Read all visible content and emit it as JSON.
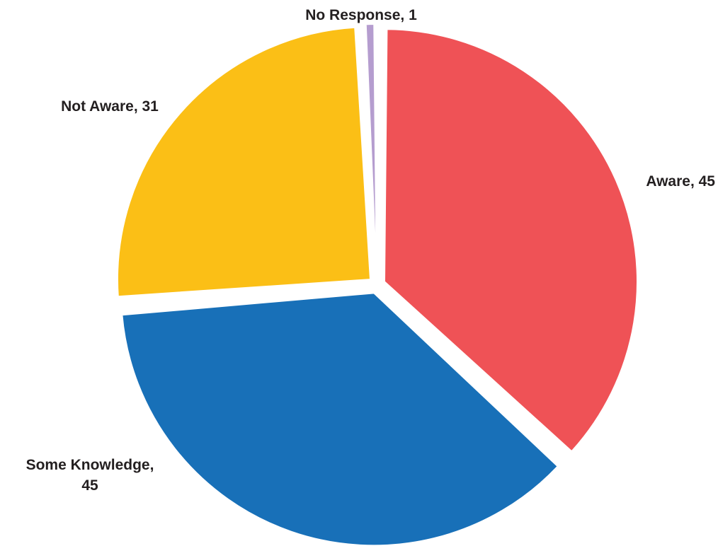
{
  "chart_data": {
    "type": "pie",
    "title": "",
    "slices": [
      {
        "name": "Aware",
        "value": 45,
        "color": "#ef5256",
        "label_lines": [
          "Aware, 45"
        ]
      },
      {
        "name": "Some Knowledge",
        "value": 45,
        "color": "#1870b8",
        "label_lines": [
          "Some Knowledge,",
          "45"
        ]
      },
      {
        "name": "Not Aware",
        "value": 31,
        "color": "#fbbf16",
        "label_lines": [
          "Not Aware, 31"
        ]
      },
      {
        "name": "No Response",
        "value": 1,
        "color": "#b59dcf",
        "label_lines": [
          "No Response, 1"
        ]
      }
    ],
    "start_angle": "12 o'clock",
    "direction": "clockwise",
    "legend": "none",
    "labels": "outside"
  }
}
